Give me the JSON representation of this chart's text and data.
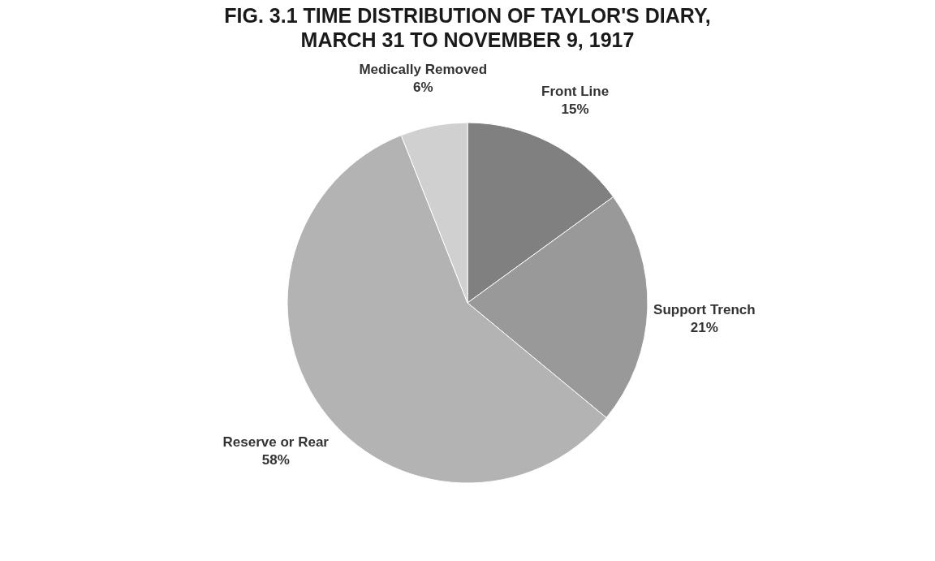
{
  "chart_data": {
    "type": "pie",
    "title": "FIG. 3.1 TIME DISTRIBUTION OF TAYLOR'S DIARY, MARCH 31 TO NOVEMBER 9, 1917",
    "categories": [
      "Front Line",
      "Support Trench",
      "Reserve or Rear",
      "Medically Removed"
    ],
    "values": [
      15,
      21,
      58,
      6
    ],
    "value_labels": [
      "15%",
      "21%",
      "58%",
      "6%"
    ],
    "colors": [
      "#808080",
      "#999999",
      "#b3b3b3",
      "#d0d0d0"
    ],
    "legend": false
  }
}
